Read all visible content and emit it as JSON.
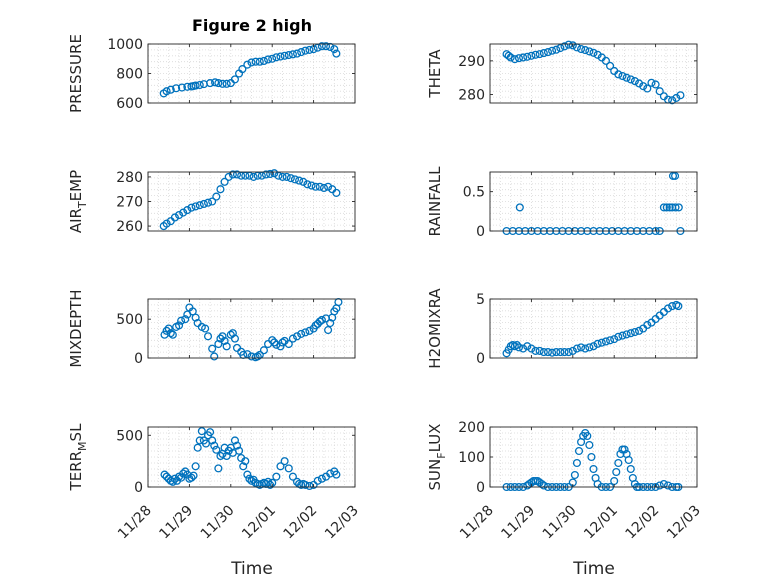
{
  "colors": {
    "marker": "#0072BD",
    "axis": "#262626",
    "grid": "#D9D9D9",
    "background": "#ffffff"
  },
  "x_ticks": [
    "11/28",
    "11/29",
    "11/30",
    "12/01",
    "12/02",
    "12/03"
  ],
  "xlabel": "Time",
  "chart_data": [
    {
      "type": "scatter",
      "id": "pressure",
      "title": "Figure 2 high",
      "ylabel": "PRESSURE",
      "ylabel_sub": "",
      "ylim": [
        600,
        1000
      ],
      "yticks": [
        600,
        800,
        1000
      ],
      "xlim": [
        0,
        5
      ],
      "grid": "on",
      "series": [
        {
          "x": [
            0.38,
            0.45,
            0.55,
            0.68,
            0.82,
            0.95,
            1.05,
            1.1,
            1.15,
            1.25,
            1.35,
            1.5,
            1.62,
            1.7,
            1.8,
            1.9,
            2.0,
            2.1,
            2.2,
            2.28,
            2.4,
            2.5,
            2.6,
            2.7,
            2.8,
            2.9,
            3.0,
            3.1,
            3.2,
            3.3,
            3.4,
            3.5,
            3.6,
            3.7,
            3.8,
            3.9,
            4.0,
            4.1,
            4.2,
            4.3,
            4.4,
            4.5,
            4.55
          ],
          "y": [
            665,
            680,
            690,
            700,
            705,
            710,
            712,
            715,
            718,
            722,
            728,
            735,
            740,
            735,
            730,
            730,
            735,
            760,
            800,
            830,
            860,
            875,
            880,
            880,
            885,
            895,
            900,
            910,
            915,
            920,
            925,
            930,
            935,
            945,
            955,
            960,
            965,
            975,
            985,
            985,
            980,
            965,
            935
          ]
        }
      ]
    },
    {
      "type": "scatter",
      "id": "theta",
      "title": "",
      "ylabel": "THETA",
      "ylabel_sub": "",
      "ylim": [
        277.5,
        295
      ],
      "yticks": [
        280,
        290
      ],
      "xlim": [
        0,
        5
      ],
      "grid": "on",
      "series": [
        {
          "x": [
            0.4,
            0.45,
            0.5,
            0.6,
            0.7,
            0.8,
            0.9,
            1.0,
            1.1,
            1.2,
            1.3,
            1.4,
            1.5,
            1.6,
            1.7,
            1.8,
            1.9,
            2.0,
            2.1,
            2.2,
            2.3,
            2.4,
            2.5,
            2.6,
            2.7,
            2.8,
            2.9,
            3.0,
            3.1,
            3.2,
            3.3,
            3.4,
            3.5,
            3.6,
            3.7,
            3.8,
            3.9,
            4.0,
            4.1,
            4.2,
            4.3,
            4.4,
            4.5,
            4.6
          ],
          "y": [
            292,
            291.5,
            291,
            290.5,
            290.8,
            291,
            291.2,
            291.5,
            291.8,
            292,
            292.3,
            292.6,
            293,
            293.3,
            293.8,
            294.3,
            294.8,
            294.6,
            294,
            293.5,
            293.2,
            292.8,
            292.4,
            291.8,
            291,
            290,
            288.5,
            287,
            286,
            285.5,
            285,
            284.5,
            284,
            283.3,
            282.5,
            281.8,
            283.5,
            283,
            281,
            279.5,
            278.5,
            278.3,
            279,
            279.8
          ]
        }
      ]
    },
    {
      "type": "scatter",
      "id": "air-temp",
      "title": "",
      "ylabel": "AIR",
      "ylabel_sub": "T",
      "ylabel_rest": "EMP",
      "ylim": [
        258,
        282
      ],
      "yticks": [
        260,
        270,
        280
      ],
      "xlim": [
        0,
        5
      ],
      "grid": "on",
      "series": [
        {
          "x": [
            0.38,
            0.45,
            0.55,
            0.65,
            0.75,
            0.85,
            0.95,
            1.05,
            1.15,
            1.25,
            1.35,
            1.45,
            1.55,
            1.65,
            1.75,
            1.85,
            1.95,
            2.05,
            2.15,
            2.25,
            2.35,
            2.45,
            2.55,
            2.65,
            2.75,
            2.85,
            2.95,
            3.05,
            3.15,
            3.25,
            3.35,
            3.45,
            3.55,
            3.65,
            3.75,
            3.85,
            3.95,
            4.05,
            4.15,
            4.25,
            4.35,
            4.45,
            4.55
          ],
          "y": [
            260,
            261,
            262,
            263.5,
            264.5,
            265.5,
            266.5,
            267.5,
            268,
            268.5,
            269,
            269.5,
            270,
            272,
            275,
            278,
            280,
            281,
            281,
            280.5,
            280.5,
            280.5,
            280,
            280.5,
            280.5,
            281,
            281.2,
            281.5,
            280.5,
            280,
            280,
            279.5,
            279,
            278.5,
            278,
            277,
            276.5,
            276,
            276,
            275.5,
            276,
            275,
            273.5
          ]
        }
      ]
    },
    {
      "type": "scatter",
      "id": "rainfall",
      "title": "",
      "ylabel": "RAINFALL",
      "ylabel_sub": "",
      "ylim": [
        0,
        0.75
      ],
      "yticks": [
        0,
        0.5
      ],
      "xlim": [
        0,
        5
      ],
      "grid": "on",
      "series": [
        {
          "x": [
            0.4,
            0.55,
            0.7,
            0.85,
            1.0,
            1.15,
            1.3,
            1.45,
            1.6,
            1.75,
            1.9,
            2.05,
            2.2,
            2.35,
            2.5,
            2.65,
            2.8,
            2.95,
            3.1,
            3.25,
            3.4,
            3.55,
            3.7,
            3.85,
            4.0,
            4.1,
            0.72,
            4.2,
            4.27,
            4.34,
            4.4,
            4.48,
            4.42,
            4.47,
            4.56,
            4.6
          ],
          "y": [
            0,
            0,
            0,
            0,
            0,
            0,
            0,
            0,
            0,
            0,
            0,
            0,
            0,
            0,
            0,
            0,
            0,
            0,
            0,
            0,
            0,
            0,
            0,
            0,
            0,
            0,
            0.3,
            0.3,
            0.3,
            0.3,
            0.3,
            0.3,
            0.7,
            0.7,
            0.3,
            0
          ]
        }
      ]
    },
    {
      "type": "scatter",
      "id": "mixdepth",
      "title": "",
      "ylabel": "MIXDEPTH",
      "ylabel_sub": "",
      "ylim": [
        0,
        760
      ],
      "yticks": [
        0,
        500
      ],
      "xlim": [
        0,
        5
      ],
      "grid": "on",
      "series": [
        {
          "x": [
            0.4,
            0.45,
            0.5,
            0.55,
            0.6,
            0.68,
            0.75,
            0.8,
            0.9,
            0.95,
            1.0,
            1.08,
            1.15,
            1.2,
            1.3,
            1.38,
            1.45,
            1.55,
            1.6,
            1.7,
            1.75,
            1.8,
            1.85,
            1.9,
            2.0,
            2.05,
            2.1,
            2.15,
            2.25,
            2.3,
            2.4,
            2.5,
            2.6,
            2.65,
            2.7,
            2.8,
            2.9,
            3.0,
            3.05,
            3.1,
            3.2,
            3.25,
            3.3,
            3.4,
            3.5,
            3.6,
            3.7,
            3.8,
            3.9,
            4.0,
            4.05,
            4.1,
            4.15,
            4.2,
            4.3,
            4.35,
            4.4,
            4.45,
            4.5,
            4.55,
            4.6
          ],
          "y": [
            300,
            350,
            380,
            320,
            300,
            400,
            420,
            480,
            500,
            560,
            650,
            600,
            520,
            450,
            400,
            380,
            280,
            120,
            20,
            180,
            250,
            280,
            220,
            150,
            300,
            320,
            250,
            130,
            80,
            40,
            50,
            20,
            10,
            20,
            40,
            100,
            180,
            230,
            200,
            170,
            150,
            200,
            220,
            180,
            250,
            280,
            310,
            330,
            350,
            380,
            420,
            440,
            470,
            490,
            510,
            360,
            450,
            520,
            600,
            640,
            720
          ]
        }
      ]
    },
    {
      "type": "scatter",
      "id": "h2omixra",
      "title": "",
      "ylabel": "H2OMIXRA",
      "ylabel_sub": "",
      "ylim": [
        0,
        5
      ],
      "yticks": [
        0,
        5
      ],
      "xlim": [
        0,
        5
      ],
      "grid": "on",
      "series": [
        {
          "x": [
            0.4,
            0.45,
            0.5,
            0.55,
            0.6,
            0.65,
            0.7,
            0.8,
            0.9,
            1.0,
            1.1,
            1.2,
            1.3,
            1.4,
            1.5,
            1.6,
            1.7,
            1.8,
            1.9,
            2.0,
            2.1,
            2.2,
            2.3,
            2.4,
            2.5,
            2.6,
            2.7,
            2.8,
            2.9,
            3.0,
            3.1,
            3.2,
            3.3,
            3.4,
            3.5,
            3.6,
            3.7,
            3.8,
            3.9,
            4.0,
            4.1,
            4.2,
            4.3,
            4.4,
            4.5,
            4.55
          ],
          "y": [
            0.4,
            0.7,
            1.0,
            1.1,
            1.0,
            1.1,
            0.9,
            0.8,
            1.0,
            0.8,
            0.6,
            0.6,
            0.5,
            0.5,
            0.45,
            0.5,
            0.5,
            0.5,
            0.5,
            0.6,
            0.8,
            0.9,
            0.8,
            0.9,
            1.0,
            1.2,
            1.3,
            1.4,
            1.5,
            1.6,
            1.8,
            1.9,
            2.0,
            2.1,
            2.2,
            2.3,
            2.5,
            2.8,
            3.0,
            3.3,
            3.6,
            3.9,
            4.2,
            4.4,
            4.5,
            4.4
          ]
        }
      ]
    },
    {
      "type": "scatter",
      "id": "terr-msl",
      "title": "",
      "ylabel": "TERR",
      "ylabel_sub": "M",
      "ylabel_rest": "SL",
      "ylim": [
        0,
        580
      ],
      "yticks": [
        0,
        500
      ],
      "xlim": [
        0,
        5
      ],
      "grid": "on",
      "series": [
        {
          "x": [
            0.4,
            0.45,
            0.5,
            0.55,
            0.6,
            0.65,
            0.7,
            0.75,
            0.8,
            0.85,
            0.9,
            0.95,
            1.0,
            1.05,
            1.1,
            1.15,
            1.2,
            1.25,
            1.3,
            1.35,
            1.4,
            1.45,
            1.5,
            1.55,
            1.6,
            1.65,
            1.7,
            1.75,
            1.8,
            1.85,
            1.9,
            1.95,
            2.0,
            2.05,
            2.1,
            2.15,
            2.2,
            2.25,
            2.3,
            2.35,
            2.4,
            2.45,
            2.5,
            2.55,
            2.6,
            2.65,
            2.7,
            2.75,
            2.8,
            2.85,
            2.9,
            2.95,
            3.0,
            3.1,
            3.2,
            3.3,
            3.4,
            3.5,
            3.6,
            3.65,
            3.7,
            3.75,
            3.8,
            3.9,
            4.0,
            4.1,
            4.2,
            4.3,
            4.4,
            4.5,
            4.55
          ],
          "y": [
            120,
            100,
            80,
            60,
            50,
            80,
            60,
            100,
            90,
            130,
            150,
            120,
            80,
            90,
            110,
            200,
            380,
            450,
            540,
            450,
            420,
            500,
            530,
            450,
            400,
            360,
            180,
            300,
            320,
            380,
            300,
            350,
            380,
            330,
            450,
            400,
            350,
            280,
            200,
            250,
            120,
            80,
            60,
            70,
            40,
            30,
            20,
            30,
            40,
            30,
            50,
            20,
            40,
            100,
            200,
            250,
            180,
            100,
            50,
            30,
            20,
            30,
            20,
            10,
            20,
            60,
            80,
            100,
            130,
            150,
            120
          ]
        }
      ]
    },
    {
      "type": "scatter",
      "id": "sun-flux",
      "title": "",
      "ylabel": "SUN",
      "ylabel_sub": "F",
      "ylabel_rest": "LUX",
      "ylim": [
        0,
        200
      ],
      "yticks": [
        0,
        100,
        200
      ],
      "xlim": [
        0,
        5
      ],
      "grid": "on",
      "series": [
        {
          "x": [
            0.4,
            0.5,
            0.6,
            0.7,
            0.8,
            0.9,
            0.95,
            1.0,
            1.05,
            1.1,
            1.15,
            1.2,
            1.25,
            1.3,
            1.4,
            1.5,
            1.6,
            1.7,
            1.8,
            1.9,
            2.0,
            2.05,
            2.1,
            2.15,
            2.2,
            2.25,
            2.3,
            2.35,
            2.4,
            2.45,
            2.5,
            2.55,
            2.6,
            2.7,
            2.8,
            2.9,
            3.0,
            3.05,
            3.1,
            3.15,
            3.2,
            3.25,
            3.3,
            3.35,
            3.4,
            3.45,
            3.5,
            3.55,
            3.6,
            3.7,
            3.8,
            3.9,
            4.0,
            4.1,
            4.2,
            4.3,
            4.4,
            4.5,
            4.55
          ],
          "y": [
            0,
            0,
            0,
            0,
            0,
            5,
            10,
            15,
            20,
            20,
            20,
            15,
            10,
            5,
            0,
            0,
            0,
            0,
            0,
            0,
            15,
            40,
            80,
            120,
            150,
            170,
            180,
            170,
            140,
            100,
            60,
            30,
            10,
            0,
            0,
            0,
            20,
            50,
            80,
            110,
            125,
            125,
            110,
            90,
            60,
            30,
            10,
            0,
            0,
            0,
            0,
            0,
            0,
            5,
            10,
            5,
            0,
            0,
            0
          ]
        }
      ]
    }
  ]
}
